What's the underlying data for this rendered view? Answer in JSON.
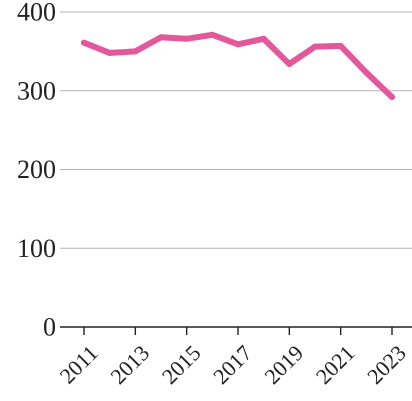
{
  "chart_data": {
    "type": "line",
    "title": "",
    "xlabel": "",
    "ylabel": "",
    "x": [
      2011,
      2012,
      2013,
      2014,
      2015,
      2016,
      2017,
      2018,
      2019,
      2020,
      2021,
      2022,
      2023
    ],
    "x_tick_labels": [
      "2011",
      "2013",
      "2015",
      "2017",
      "2019",
      "2021",
      "2023"
    ],
    "y_tick_labels": [
      "0",
      "100",
      "200",
      "300",
      "400"
    ],
    "ylim": [
      0,
      400
    ],
    "grid": "horizontal",
    "series": [
      {
        "color": "#e4579a",
        "values": [
          361,
          348,
          350,
          368,
          366,
          371,
          359,
          366,
          334,
          356,
          357,
          323,
          292
        ]
      }
    ]
  }
}
